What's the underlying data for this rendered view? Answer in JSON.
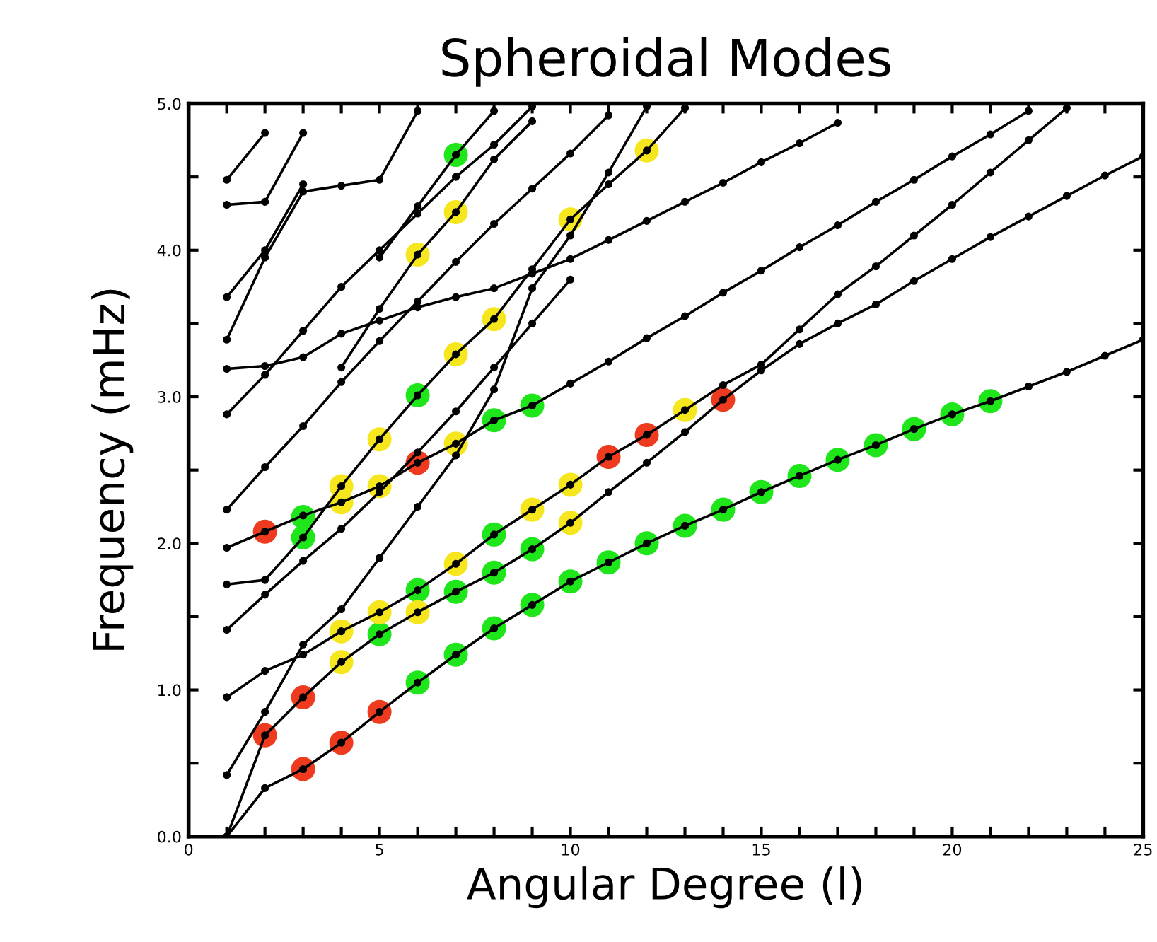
{
  "chart_data": {
    "type": "line",
    "title": "Spheroidal Modes",
    "xlabel": "Angular Degree (l)",
    "ylabel": "Frequency (mHz)",
    "xlim": [
      0,
      25
    ],
    "ylim": [
      0,
      5
    ],
    "xticks": [
      0,
      {
        "value": 1,
        "label": null
      },
      {
        "value": 2,
        "label": null
      },
      {
        "value": 3,
        "label": null
      },
      {
        "value": 4,
        "label": null
      },
      5,
      {
        "value": 6,
        "label": null
      },
      {
        "value": 7,
        "label": null
      },
      {
        "value": 8,
        "label": null
      },
      {
        "value": 9,
        "label": null
      },
      10,
      {
        "value": 11,
        "label": null
      },
      {
        "value": 12,
        "label": null
      },
      {
        "value": 13,
        "label": null
      },
      {
        "value": 14,
        "label": null
      },
      15,
      {
        "value": 16,
        "label": null
      },
      {
        "value": 17,
        "label": null
      },
      {
        "value": 18,
        "label": null
      },
      {
        "value": 19,
        "label": null
      },
      20,
      {
        "value": 21,
        "label": null
      },
      {
        "value": 22,
        "label": null
      },
      {
        "value": 23,
        "label": null
      },
      {
        "value": 24,
        "label": null
      },
      25
    ],
    "yticks": [
      {
        "value": 0,
        "label": "0.0"
      },
      {
        "value": 0.5,
        "label": null
      },
      {
        "value": 1,
        "label": "1.0"
      },
      {
        "value": 1.5,
        "label": null
      },
      {
        "value": 2,
        "label": "2.0"
      },
      {
        "value": 2.5,
        "label": null
      },
      {
        "value": 3,
        "label": "3.0"
      },
      {
        "value": 3.5,
        "label": null
      },
      {
        "value": 4,
        "label": "4.0"
      },
      {
        "value": 4.5,
        "label": null
      },
      {
        "value": 5,
        "label": "5.0"
      }
    ],
    "grid": false,
    "legend": false,
    "marker": "circle",
    "line_style": "solid",
    "series": [
      {
        "color": "#000000",
        "x": [
          1,
          2,
          3,
          4,
          5,
          6,
          7,
          8,
          9,
          10,
          11,
          12,
          13,
          14,
          15,
          16,
          17,
          18,
          19,
          20,
          21,
          22,
          23,
          24,
          25
        ],
        "values": [
          0,
          0.33,
          0.46,
          0.64,
          0.85,
          1.05,
          1.24,
          1.42,
          1.58,
          1.74,
          1.87,
          2.0,
          2.12,
          2.23,
          2.35,
          2.46,
          2.57,
          2.67,
          2.78,
          2.88,
          2.97,
          3.07,
          3.17,
          3.28,
          3.39
        ]
      },
      {
        "color": "#000000",
        "x": [
          1,
          2,
          3,
          4,
          5,
          6,
          7,
          8,
          9,
          10,
          11,
          12,
          13,
          14,
          15,
          16,
          17,
          18,
          19,
          20,
          21,
          22,
          23,
          24,
          25
        ],
        "values": [
          0,
          0.69,
          0.95,
          1.19,
          1.38,
          1.53,
          1.67,
          1.8,
          1.96,
          2.14,
          2.35,
          2.55,
          2.76,
          2.98,
          3.18,
          3.36,
          3.5,
          3.63,
          3.79,
          3.94,
          4.09,
          4.23,
          4.37,
          4.51,
          4.64
        ]
      },
      {
        "color": "#000000",
        "x": [
          1,
          2,
          3,
          4,
          5,
          6,
          7,
          8,
          9,
          10,
          11,
          12,
          13,
          14,
          15,
          16,
          17,
          18,
          19,
          20,
          21,
          22,
          23
        ],
        "values": [
          0.95,
          1.13,
          1.24,
          1.4,
          1.53,
          1.68,
          1.86,
          2.06,
          2.23,
          2.4,
          2.59,
          2.74,
          2.91,
          3.08,
          3.22,
          3.46,
          3.7,
          3.89,
          4.1,
          4.31,
          4.53,
          4.75,
          4.97
        ]
      },
      {
        "color": "#000000",
        "x": [
          1,
          2,
          3,
          4,
          5,
          6,
          7,
          8,
          9,
          10,
          11,
          12,
          13,
          14,
          15,
          16,
          17,
          18,
          19,
          20,
          21,
          22
        ],
        "values": [
          1.97,
          2.08,
          2.19,
          2.28,
          2.39,
          2.55,
          2.68,
          2.84,
          2.94,
          3.09,
          3.24,
          3.4,
          3.55,
          3.71,
          3.86,
          4.02,
          4.17,
          4.33,
          4.48,
          4.64,
          4.79,
          4.95
        ]
      },
      {
        "color": "#000000",
        "x": [
          1,
          2,
          3,
          4,
          5,
          6,
          7,
          8,
          9,
          10,
          11,
          12,
          13
        ],
        "values": [
          1.72,
          1.75,
          2.04,
          2.39,
          2.71,
          3.01,
          3.29,
          3.53,
          3.87,
          4.21,
          4.45,
          4.68,
          4.97
        ]
      },
      {
        "color": "#000000",
        "x": [
          1,
          2,
          3,
          4,
          5,
          6,
          7,
          8,
          9,
          10,
          11,
          12
        ],
        "values": [
          0.42,
          0.85,
          1.31,
          1.55,
          1.9,
          2.25,
          2.6,
          3.05,
          3.74,
          4.1,
          4.53,
          4.98
        ]
      },
      {
        "color": "#000000",
        "x": [
          1,
          2,
          3,
          4,
          5,
          6,
          7,
          8,
          9,
          10
        ],
        "values": [
          1.41,
          1.65,
          1.88,
          2.1,
          2.35,
          2.62,
          2.9,
          3.2,
          3.5,
          3.8
        ]
      },
      {
        "color": "#000000",
        "x": [
          1,
          2,
          3,
          4,
          5,
          6,
          7,
          8,
          9,
          10,
          11
        ],
        "values": [
          2.23,
          2.52,
          2.8,
          3.1,
          3.38,
          3.65,
          3.92,
          4.18,
          4.42,
          4.66,
          4.92
        ]
      },
      {
        "color": "#000000",
        "x": [
          1,
          2,
          3,
          4,
          5,
          6,
          7,
          8,
          9
        ],
        "values": [
          2.88,
          3.15,
          3.45,
          3.75,
          4.0,
          4.25,
          4.5,
          4.72,
          4.98
        ]
      },
      {
        "color": "#000000",
        "x": [
          1,
          2,
          3,
          4,
          5,
          6,
          7,
          8,
          9,
          10,
          11,
          12,
          13,
          14,
          15,
          16,
          17
        ],
        "values": [
          3.19,
          3.21,
          3.27,
          3.43,
          3.52,
          3.61,
          3.68,
          3.74,
          3.84,
          3.94,
          4.07,
          4.2,
          4.33,
          4.46,
          4.6,
          4.73,
          4.87
        ]
      },
      {
        "color": "#000000",
        "x": [
          4,
          5,
          6,
          7,
          8,
          9
        ],
        "values": [
          3.2,
          3.6,
          3.97,
          4.26,
          4.62,
          4.88
        ]
      },
      {
        "color": "#000000",
        "x": [
          5,
          6,
          7,
          8
        ],
        "values": [
          3.95,
          4.3,
          4.65,
          4.95
        ]
      },
      {
        "color": "#000000",
        "x": [
          1,
          2,
          3
        ],
        "values": [
          3.68,
          4.0,
          4.45
        ]
      },
      {
        "color": "#000000",
        "x": [
          1,
          2,
          3
        ],
        "values": [
          4.31,
          4.33,
          4.8
        ]
      },
      {
        "color": "#000000",
        "x": [
          1,
          2
        ],
        "values": [
          4.48,
          4.8
        ]
      },
      {
        "color": "#000000",
        "x": [
          1,
          2,
          3,
          4,
          5,
          6
        ],
        "values": [
          3.39,
          3.95,
          4.4,
          4.44,
          4.48,
          4.95
        ]
      },
      {
        "type": "scatter",
        "color": "#1ee61a",
        "x": [
          3,
          3,
          5,
          6,
          7,
          8,
          8,
          9,
          6,
          7,
          8,
          9,
          10,
          11,
          12,
          13,
          14,
          15,
          16,
          17,
          18,
          19,
          20,
          21,
          6,
          7,
          8,
          9
        ],
        "values": [
          2.18,
          2.04,
          1.38,
          1.68,
          1.67,
          2.06,
          1.8,
          1.96,
          1.05,
          1.24,
          1.42,
          1.58,
          1.74,
          1.87,
          2.0,
          2.12,
          2.23,
          2.35,
          2.46,
          2.57,
          2.67,
          2.78,
          2.88,
          2.97,
          3.01,
          4.65,
          2.84,
          2.94
        ]
      },
      {
        "type": "scatter",
        "color": "#f5e61e",
        "x": [
          4,
          5,
          7,
          9,
          10,
          4,
          6,
          10,
          4,
          4,
          5,
          5,
          7,
          13,
          7,
          8,
          10,
          12,
          6,
          7
        ],
        "values": [
          1.4,
          1.53,
          1.86,
          2.23,
          2.4,
          1.19,
          1.53,
          2.14,
          2.28,
          2.39,
          2.39,
          2.71,
          2.68,
          2.91,
          3.29,
          3.53,
          4.21,
          4.68,
          3.97,
          4.26
        ]
      },
      {
        "type": "scatter",
        "color": "#ee3a1e",
        "x": [
          2,
          3,
          3,
          4,
          5,
          2,
          6,
          11,
          12,
          14
        ],
        "values": [
          0.69,
          0.95,
          0.46,
          0.64,
          0.85,
          2.08,
          2.55,
          2.59,
          2.74,
          2.98
        ]
      }
    ]
  }
}
